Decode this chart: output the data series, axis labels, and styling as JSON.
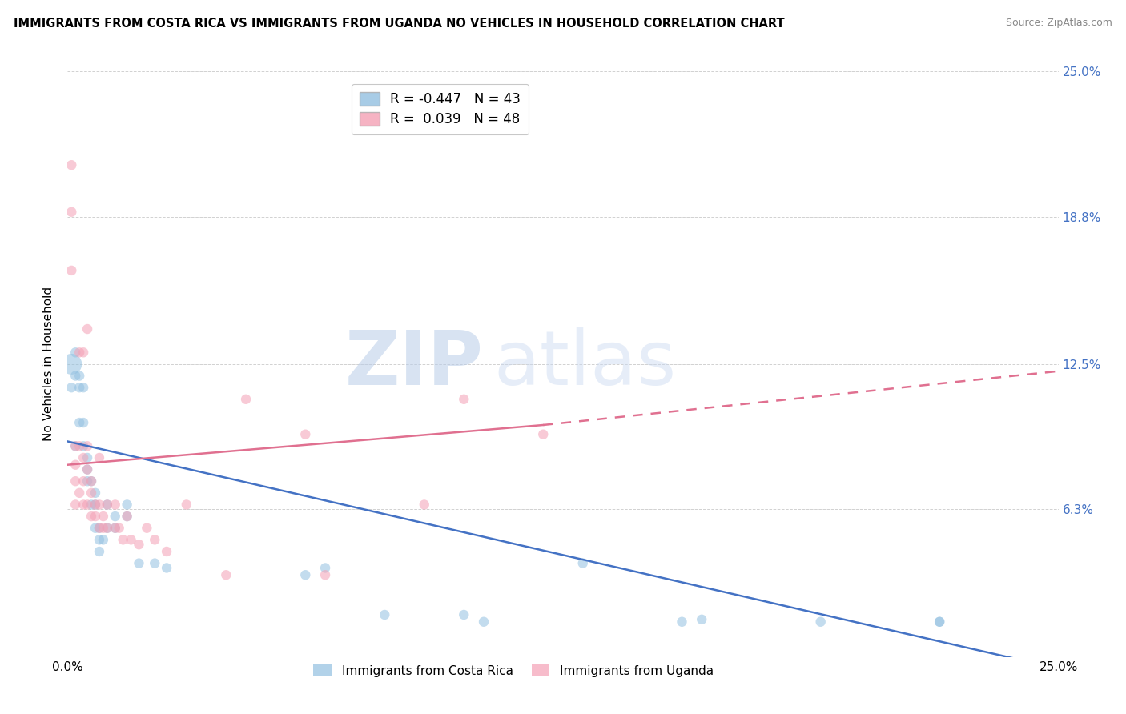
{
  "title": "IMMIGRANTS FROM COSTA RICA VS IMMIGRANTS FROM UGANDA NO VEHICLES IN HOUSEHOLD CORRELATION CHART",
  "source": "Source: ZipAtlas.com",
  "ylabel": "No Vehicles in Household",
  "xlim": [
    0.0,
    0.25
  ],
  "ylim": [
    0.0,
    0.25
  ],
  "ytick_values": [
    0.0,
    0.063,
    0.125,
    0.188,
    0.25
  ],
  "right_ytick_values": [
    0.25,
    0.188,
    0.125,
    0.063
  ],
  "right_ytick_labels": [
    "25.0%",
    "18.8%",
    "12.5%",
    "6.3%"
  ],
  "legend_r_blue": "-0.447",
  "legend_n_blue": "43",
  "legend_r_pink": "0.039",
  "legend_n_pink": "48",
  "blue_color": "#92C0E0",
  "pink_color": "#F4A0B5",
  "blue_line_color": "#4472C4",
  "pink_line_color": "#E07090",
  "grid_color": "#CCCCCC",
  "background_color": "#FFFFFF",
  "watermark_zip": "ZIP",
  "watermark_atlas": "atlas",
  "watermark_color": "#C8D8F0",
  "blue_line_x0": 0.0,
  "blue_line_y0": 0.092,
  "blue_line_x1": 0.25,
  "blue_line_y1": -0.005,
  "pink_line_x0": 0.0,
  "pink_line_y0": 0.082,
  "pink_line_x_solid_end": 0.12,
  "pink_line_y_solid_end": 0.099,
  "pink_line_x1": 0.25,
  "pink_line_y1": 0.122,
  "costa_rica_x": [
    0.001,
    0.001,
    0.002,
    0.002,
    0.002,
    0.003,
    0.003,
    0.003,
    0.004,
    0.004,
    0.004,
    0.005,
    0.005,
    0.005,
    0.006,
    0.006,
    0.007,
    0.007,
    0.007,
    0.008,
    0.008,
    0.008,
    0.009,
    0.01,
    0.01,
    0.012,
    0.012,
    0.015,
    0.015,
    0.018,
    0.022,
    0.025,
    0.06,
    0.065,
    0.08,
    0.1,
    0.105,
    0.13,
    0.155,
    0.16,
    0.19,
    0.22,
    0.22
  ],
  "costa_rica_y": [
    0.125,
    0.115,
    0.13,
    0.12,
    0.09,
    0.12,
    0.115,
    0.1,
    0.115,
    0.1,
    0.09,
    0.085,
    0.08,
    0.075,
    0.075,
    0.065,
    0.07,
    0.065,
    0.055,
    0.055,
    0.05,
    0.045,
    0.05,
    0.065,
    0.055,
    0.06,
    0.055,
    0.065,
    0.06,
    0.04,
    0.04,
    0.038,
    0.035,
    0.038,
    0.018,
    0.018,
    0.015,
    0.04,
    0.015,
    0.016,
    0.015,
    0.015,
    0.015
  ],
  "costa_rica_size": [
    350,
    80,
    80,
    80,
    80,
    80,
    80,
    80,
    80,
    80,
    80,
    80,
    80,
    80,
    80,
    80,
    80,
    80,
    80,
    80,
    80,
    80,
    80,
    80,
    80,
    80,
    80,
    80,
    80,
    80,
    80,
    80,
    80,
    80,
    80,
    80,
    80,
    80,
    80,
    80,
    80,
    80,
    80
  ],
  "uganda_x": [
    0.001,
    0.001,
    0.001,
    0.002,
    0.002,
    0.002,
    0.002,
    0.003,
    0.003,
    0.003,
    0.004,
    0.004,
    0.004,
    0.004,
    0.005,
    0.005,
    0.005,
    0.005,
    0.006,
    0.006,
    0.006,
    0.007,
    0.007,
    0.008,
    0.008,
    0.008,
    0.009,
    0.009,
    0.01,
    0.01,
    0.012,
    0.012,
    0.013,
    0.014,
    0.015,
    0.016,
    0.018,
    0.02,
    0.022,
    0.025,
    0.03,
    0.04,
    0.045,
    0.06,
    0.065,
    0.09,
    0.1,
    0.12
  ],
  "uganda_y": [
    0.21,
    0.19,
    0.165,
    0.09,
    0.082,
    0.075,
    0.065,
    0.13,
    0.09,
    0.07,
    0.13,
    0.085,
    0.075,
    0.065,
    0.14,
    0.09,
    0.08,
    0.065,
    0.075,
    0.07,
    0.06,
    0.065,
    0.06,
    0.085,
    0.065,
    0.055,
    0.06,
    0.055,
    0.065,
    0.055,
    0.065,
    0.055,
    0.055,
    0.05,
    0.06,
    0.05,
    0.048,
    0.055,
    0.05,
    0.045,
    0.065,
    0.035,
    0.11,
    0.095,
    0.035,
    0.065,
    0.11,
    0.095
  ],
  "uganda_size": [
    80,
    80,
    80,
    80,
    80,
    80,
    80,
    80,
    80,
    80,
    80,
    80,
    80,
    80,
    80,
    80,
    80,
    80,
    80,
    80,
    80,
    80,
    80,
    80,
    80,
    80,
    80,
    80,
    80,
    80,
    80,
    80,
    80,
    80,
    80,
    80,
    80,
    80,
    80,
    80,
    80,
    80,
    80,
    80,
    80,
    80,
    80,
    80
  ]
}
